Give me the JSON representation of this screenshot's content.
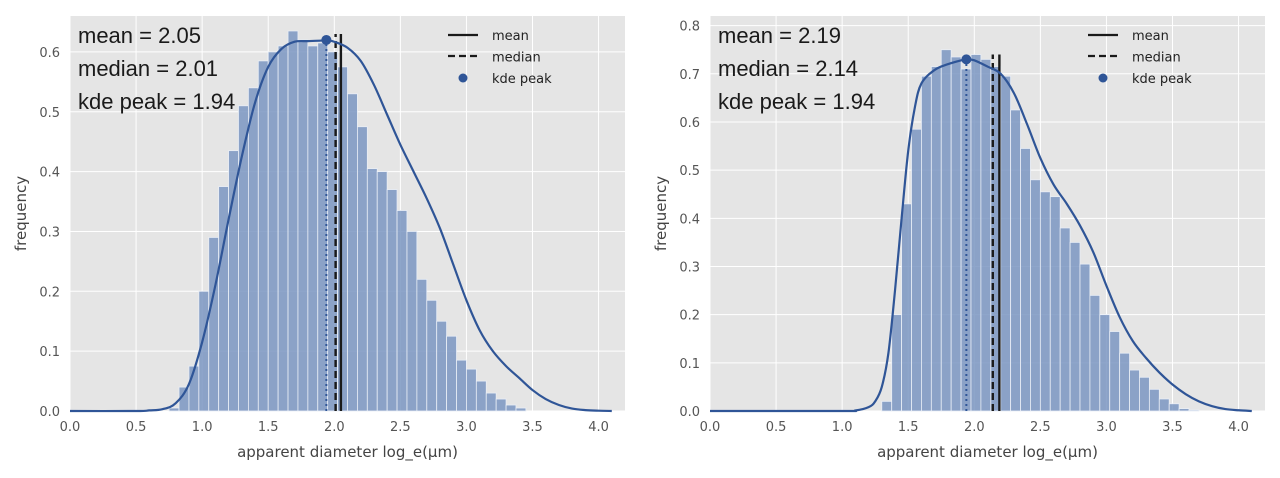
{
  "chart_data": [
    {
      "type": "bar",
      "xlabel": "apparent diameter log_e(μm)",
      "ylabel": "frequency",
      "xlim": [
        0.0,
        4.2
      ],
      "ylim": [
        0.0,
        0.66
      ],
      "xticks": [
        0.0,
        0.5,
        1.0,
        1.5,
        2.0,
        2.5,
        3.0,
        3.5,
        4.0
      ],
      "xtick_labels": [
        "0.0",
        "0.5",
        "1.0",
        "1.5",
        "2.0",
        "2.5",
        "3.0",
        "3.5",
        "4.0"
      ],
      "yticks": [
        0.0,
        0.1,
        0.2,
        0.3,
        0.4,
        0.5,
        0.6
      ],
      "ytick_labels": [
        "0.0",
        "0.1",
        "0.2",
        "0.3",
        "0.4",
        "0.5",
        "0.6"
      ],
      "grid": true,
      "legend_position": "top-right",
      "legend": [
        "mean",
        "median",
        "kde peak"
      ],
      "stats_text": [
        "mean = 2.05",
        "median = 2.01",
        "kde peak = 1.94"
      ],
      "stats": {
        "mean": 2.05,
        "median": 2.01,
        "kde_peak_x": 1.94,
        "kde_peak_y": 0.62
      },
      "histogram": {
        "bin_width": 0.075,
        "bin_start": 0.75,
        "values": [
          0.005,
          0.04,
          0.075,
          0.2,
          0.29,
          0.375,
          0.435,
          0.51,
          0.54,
          0.585,
          0.6,
          0.61,
          0.635,
          0.62,
          0.61,
          0.615,
          0.6,
          0.575,
          0.53,
          0.475,
          0.405,
          0.4,
          0.37,
          0.335,
          0.3,
          0.22,
          0.185,
          0.15,
          0.125,
          0.085,
          0.07,
          0.05,
          0.03,
          0.02,
          0.01,
          0.005
        ]
      },
      "kde": {
        "x": [
          0.0,
          0.5,
          0.6,
          0.7,
          0.8,
          0.9,
          1.0,
          1.1,
          1.2,
          1.3,
          1.4,
          1.5,
          1.6,
          1.7,
          1.8,
          1.9,
          1.94,
          2.0,
          2.1,
          2.2,
          2.3,
          2.4,
          2.5,
          2.6,
          2.7,
          2.8,
          2.9,
          3.0,
          3.1,
          3.2,
          3.3,
          3.4,
          3.5,
          3.6,
          3.7,
          3.8,
          3.9,
          4.0,
          4.1
        ],
        "y": [
          0.0,
          0.0,
          0.001,
          0.003,
          0.013,
          0.045,
          0.115,
          0.21,
          0.32,
          0.425,
          0.515,
          0.575,
          0.605,
          0.617,
          0.618,
          0.619,
          0.62,
          0.617,
          0.607,
          0.585,
          0.545,
          0.495,
          0.445,
          0.4,
          0.355,
          0.305,
          0.245,
          0.185,
          0.135,
          0.1,
          0.075,
          0.055,
          0.035,
          0.02,
          0.01,
          0.004,
          0.0015,
          0.0005,
          0.0
        ]
      }
    },
    {
      "type": "bar",
      "xlabel": "apparent diameter log_e(μm)",
      "ylabel": "frequency",
      "xlim": [
        0.0,
        4.2
      ],
      "ylim": [
        0.0,
        0.82
      ],
      "xticks": [
        0.0,
        0.5,
        1.0,
        1.5,
        2.0,
        2.5,
        3.0,
        3.5,
        4.0
      ],
      "xtick_labels": [
        "0.0",
        "0.5",
        "1.0",
        "1.5",
        "2.0",
        "2.5",
        "3.0",
        "3.5",
        "4.0"
      ],
      "yticks": [
        0.0,
        0.1,
        0.2,
        0.3,
        0.4,
        0.5,
        0.6,
        0.7,
        0.8
      ],
      "ytick_labels": [
        "0.0",
        "0.1",
        "0.2",
        "0.3",
        "0.4",
        "0.5",
        "0.6",
        "0.7",
        "0.8"
      ],
      "grid": true,
      "legend_position": "top-right",
      "legend": [
        "mean",
        "median",
        "kde peak"
      ],
      "stats_text": [
        "mean = 2.19",
        "median = 2.14",
        "kde peak = 1.94"
      ],
      "stats": {
        "mean": 2.19,
        "median": 2.14,
        "kde_peak_x": 1.94,
        "kde_peak_y": 0.73
      },
      "histogram": {
        "bin_width": 0.075,
        "bin_start": 1.3,
        "values": [
          0.02,
          0.2,
          0.43,
          0.585,
          0.695,
          0.715,
          0.75,
          0.735,
          0.71,
          0.74,
          0.73,
          0.715,
          0.695,
          0.625,
          0.545,
          0.48,
          0.455,
          0.445,
          0.38,
          0.35,
          0.305,
          0.24,
          0.2,
          0.165,
          0.12,
          0.085,
          0.07,
          0.045,
          0.025,
          0.015,
          0.005,
          0.002
        ]
      },
      "kde": {
        "x": [
          0.0,
          1.0,
          1.1,
          1.2,
          1.25,
          1.3,
          1.35,
          1.4,
          1.45,
          1.5,
          1.55,
          1.6,
          1.7,
          1.8,
          1.9,
          1.94,
          2.0,
          2.1,
          2.2,
          2.3,
          2.4,
          2.5,
          2.6,
          2.7,
          2.8,
          2.9,
          3.0,
          3.1,
          3.2,
          3.3,
          3.4,
          3.5,
          3.6,
          3.7,
          3.8,
          3.9,
          4.0,
          4.1
        ],
        "y": [
          0.0,
          0.0,
          0.001,
          0.008,
          0.02,
          0.05,
          0.12,
          0.25,
          0.4,
          0.54,
          0.63,
          0.68,
          0.708,
          0.72,
          0.728,
          0.73,
          0.728,
          0.715,
          0.7,
          0.66,
          0.595,
          0.525,
          0.47,
          0.43,
          0.385,
          0.33,
          0.26,
          0.195,
          0.145,
          0.11,
          0.08,
          0.055,
          0.035,
          0.02,
          0.01,
          0.004,
          0.0015,
          0.0
        ]
      }
    }
  ],
  "colors": {
    "panel_background": "#e5e5e5",
    "grid": "#ffffff",
    "bar_fill": "#7b96c2",
    "kde_line": "#2f5597",
    "stat_lines": "#1a1a1a"
  }
}
